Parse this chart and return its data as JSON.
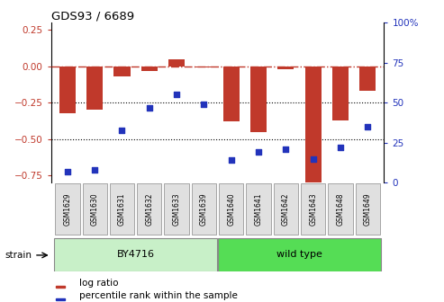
{
  "title": "GDS93 / 6689",
  "samples": [
    "GSM1629",
    "GSM1630",
    "GSM1631",
    "GSM1632",
    "GSM1633",
    "GSM1639",
    "GSM1640",
    "GSM1641",
    "GSM1642",
    "GSM1643",
    "GSM1648",
    "GSM1649"
  ],
  "log_ratio": [
    -0.32,
    -0.3,
    -0.07,
    -0.03,
    0.05,
    -0.01,
    -0.38,
    -0.45,
    -0.02,
    -0.85,
    -0.37,
    -0.17
  ],
  "percentile": [
    7,
    8,
    33,
    47,
    55,
    49,
    14,
    19,
    21,
    15,
    22,
    35
  ],
  "bar_color": "#c0392b",
  "dot_color": "#2233bb",
  "ref_line_color": "#c0392b",
  "grid_color": "#000000",
  "ylim_left": [
    -0.8,
    0.3
  ],
  "ylim_right": [
    0,
    100
  ],
  "yticks_left": [
    -0.75,
    -0.5,
    -0.25,
    0.0,
    0.25
  ],
  "yticks_right": [
    0,
    25,
    50,
    75,
    100
  ],
  "group1_label": "BY4716",
  "group2_label": "wild type",
  "group1_color": "#c8f0c8",
  "group2_color": "#55dd55",
  "strain_label": "strain",
  "legend_bar": "log ratio",
  "legend_dot": "percentile rank within the sample",
  "group1_n": 6,
  "group2_n": 6
}
